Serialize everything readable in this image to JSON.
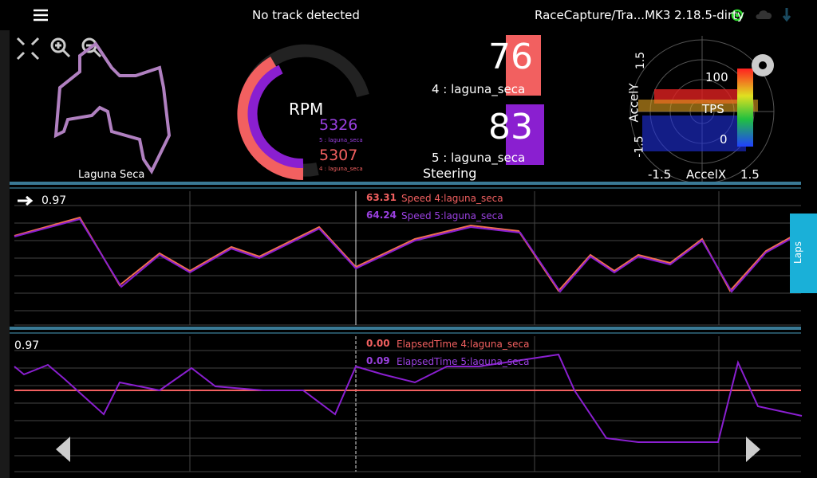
{
  "top_bar": {
    "status": "No track detected",
    "device": "RaceCapture/Tra...MK3 2.18.5-dirty"
  },
  "track_map": {
    "name": "Laguna Seca"
  },
  "rpm_gauge": {
    "label": "RPM",
    "readings": [
      {
        "value": "5326",
        "session": "5 : laguna_seca"
      },
      {
        "value": "5307",
        "session": "4 : laguna_seca"
      }
    ]
  },
  "bar_gauges": [
    {
      "value": "76",
      "session": "4 : laguna_seca"
    },
    {
      "value": "83",
      "session": "5 : laguna_seca"
    }
  ],
  "steering_label": "Steering",
  "accel_plot": {
    "y_label": "AccelY",
    "y_ticks": [
      "1.5",
      "-1.5"
    ],
    "x_label": "AccelX",
    "x_ticks": [
      "-1.5",
      "1.5"
    ],
    "tps_label": "TPS",
    "tps_max": "100",
    "tps_min": "0"
  },
  "chart_1": {
    "scale": "0.97",
    "legend": [
      {
        "value": "63.31",
        "name": "Speed 4:laguna_seca"
      },
      {
        "value": "64.24",
        "name": "Speed 5:laguna_seca"
      }
    ]
  },
  "chart_2": {
    "scale": "0.97",
    "legend": [
      {
        "value": "0.00",
        "name": "ElapsedTime 4:laguna_seca"
      },
      {
        "value": "0.09",
        "name": "ElapsedTime 5:laguna_seca"
      }
    ]
  },
  "laps_tab": "Laps"
}
